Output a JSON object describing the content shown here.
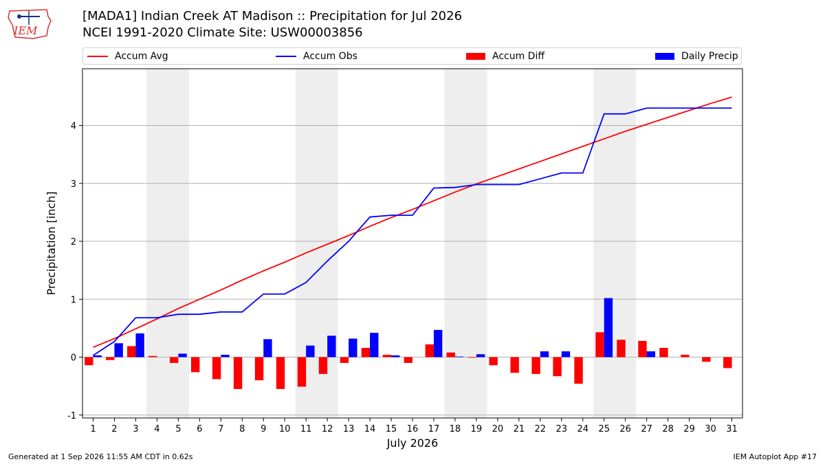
{
  "header": {
    "title_line1": "[MADA1] Indian Creek  AT Madison :: Precipitation for Jul 2026",
    "title_line2": "NCEI 1991-2020 Climate Site: USW00003856"
  },
  "logo": {
    "text": "IEM",
    "color": "#d63030"
  },
  "legend": [
    {
      "label": "Accum Avg",
      "kind": "line",
      "color": "#ff0000"
    },
    {
      "label": "Accum Obs",
      "kind": "line",
      "color": "#0000ff"
    },
    {
      "label": "Accum Diff",
      "kind": "bar",
      "color": "#ff0000"
    },
    {
      "label": "Daily Precip",
      "kind": "bar",
      "color": "#0000ff"
    }
  ],
  "footer": {
    "left": "Generated at 1 Sep 2026 11:55 AM CDT in 0.62s",
    "right": "IEM Autoplot App #17"
  },
  "chart_data": {
    "type": "bar",
    "title": "[MADA1] Indian Creek  AT Madison :: Precipitation for Jul 2026",
    "subtitle": "NCEI 1991-2020 Climate Site: USW00003856",
    "xlabel": "July 2026",
    "ylabel": "Precipitation [inch]",
    "ylim": [
      -1.05,
      4.98
    ],
    "xlim": [
      0.5,
      31.5
    ],
    "yticks": [
      -1,
      0,
      1,
      2,
      3,
      4
    ],
    "grid": "horizontal",
    "legend_position": "top",
    "weekend_bands": [
      [
        3.5,
        5.5
      ],
      [
        10.5,
        12.5
      ],
      [
        17.5,
        19.5
      ],
      [
        24.5,
        26.5
      ]
    ],
    "days": [
      1,
      2,
      3,
      4,
      5,
      6,
      7,
      8,
      9,
      10,
      11,
      12,
      13,
      14,
      15,
      16,
      17,
      18,
      19,
      20,
      21,
      22,
      23,
      24,
      25,
      26,
      27,
      28,
      29,
      30,
      31
    ],
    "series": [
      {
        "name": "Accum Avg",
        "type": "line",
        "color": "#ff0000",
        "values": [
          0.17,
          0.32,
          0.49,
          0.66,
          0.84,
          1.0,
          1.16,
          1.33,
          1.49,
          1.64,
          1.8,
          1.95,
          2.1,
          2.26,
          2.41,
          2.55,
          2.7,
          2.85,
          2.99,
          3.12,
          3.25,
          3.38,
          3.51,
          3.64,
          3.77,
          3.9,
          4.02,
          4.14,
          4.26,
          4.38,
          4.49
        ]
      },
      {
        "name": "Accum Obs",
        "type": "line",
        "color": "#0000ff",
        "values": [
          0.03,
          0.27,
          0.68,
          0.68,
          0.74,
          0.74,
          0.78,
          0.78,
          1.09,
          1.09,
          1.29,
          1.66,
          2.0,
          2.42,
          2.45,
          2.45,
          2.92,
          2.93,
          2.98,
          2.98,
          2.98,
          3.08,
          3.18,
          3.18,
          4.2,
          4.2,
          4.3,
          4.3,
          4.3,
          4.3,
          4.3
        ]
      },
      {
        "name": "Accum Diff",
        "type": "bar",
        "color": "#ff0000",
        "values": [
          -0.14,
          -0.05,
          0.19,
          0.02,
          -0.1,
          -0.26,
          -0.38,
          -0.55,
          -0.4,
          -0.55,
          -0.51,
          -0.29,
          -0.1,
          0.16,
          0.04,
          -0.1,
          0.22,
          0.08,
          -0.01,
          -0.14,
          -0.27,
          -0.29,
          -0.33,
          -0.46,
          0.43,
          0.3,
          0.28,
          0.16,
          0.04,
          -0.08,
          -0.19
        ]
      },
      {
        "name": "Daily Precip",
        "type": "bar",
        "color": "#0000ff",
        "values": [
          0.03,
          0.24,
          0.41,
          0,
          0.06,
          0,
          0.04,
          0,
          0.31,
          0,
          0.2,
          0.37,
          0.32,
          0.42,
          0.03,
          0,
          0.47,
          0.01,
          0.05,
          0,
          0,
          0.1,
          0.1,
          0,
          1.02,
          0,
          0.1,
          0,
          0,
          0,
          0
        ]
      }
    ]
  }
}
